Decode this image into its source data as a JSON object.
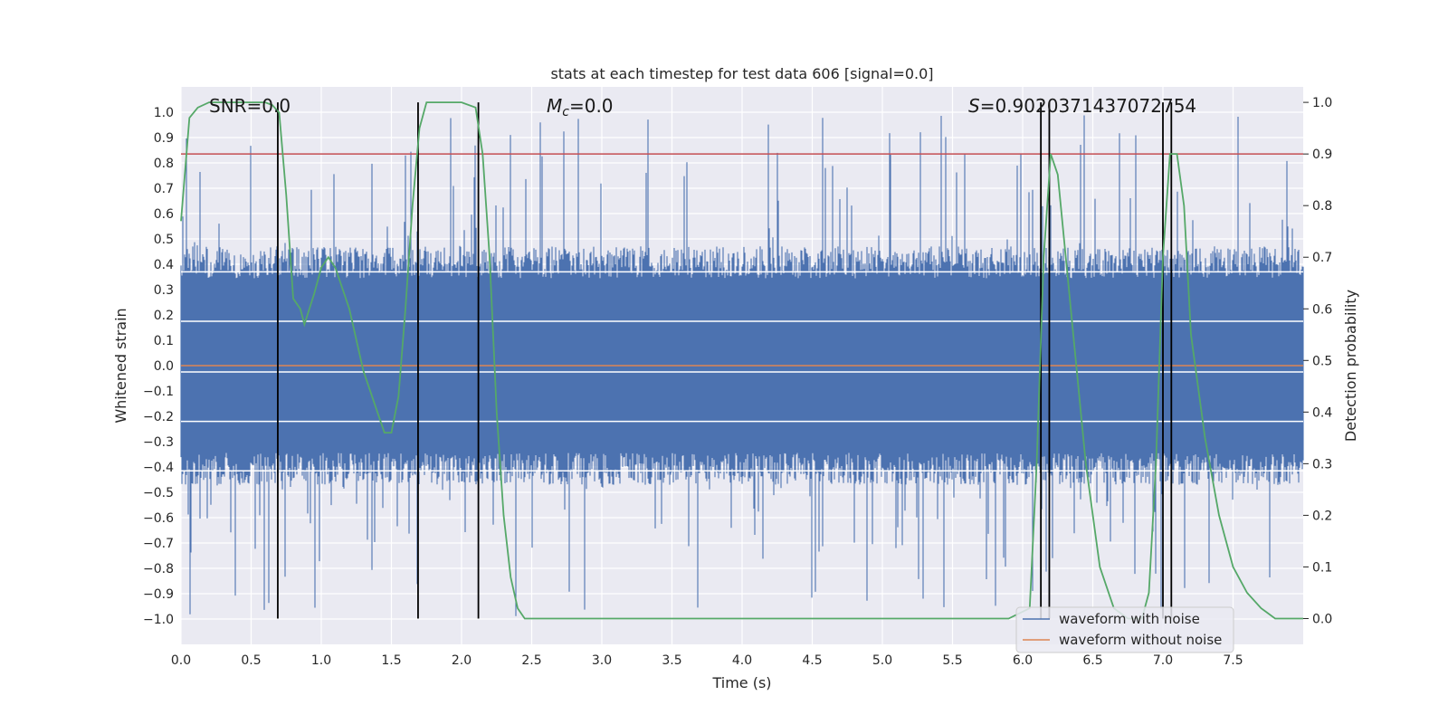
{
  "chart_data": {
    "type": "line",
    "title": "stats at each timestep for test data 606 [signal=0.0]",
    "xlabel": "Time (s)",
    "ylabel": "Whitened strain",
    "y2label": "Detection probability",
    "xlim": [
      0.0,
      8.0
    ],
    "ylim": [
      -1.1,
      1.1
    ],
    "y2lim": [
      -0.05,
      1.03
    ],
    "x_ticks": [
      "0.0",
      "0.5",
      "1.0",
      "1.5",
      "2.0",
      "2.5",
      "3.0",
      "3.5",
      "4.0",
      "4.5",
      "5.0",
      "5.5",
      "6.0",
      "6.5",
      "7.0",
      "7.5"
    ],
    "y_ticks": [
      "1.0",
      "0.9",
      "0.8",
      "0.7",
      "0.6",
      "0.5",
      "0.4",
      "0.3",
      "0.2",
      "0.1",
      "0.0",
      "-0.1",
      "-0.2",
      "-0.3",
      "-0.4",
      "-0.5",
      "-0.6",
      "-0.7",
      "-0.8",
      "-0.9",
      "-1.0"
    ],
    "y2_ticks": [
      "1.0",
      "0.9",
      "0.8",
      "0.7",
      "0.6",
      "0.5",
      "0.4",
      "0.3",
      "0.2",
      "0.1",
      "0.0"
    ],
    "annotations": {
      "snr": "SNR=0.0",
      "mc_symbol": "M",
      "mc_sub": "c",
      "mc_value": "=0.0",
      "s_symbol": "S",
      "s_value": "=0.9020371437072754"
    },
    "legend": {
      "position": "lower-right",
      "entries": [
        "waveform with noise",
        "waveform without noise"
      ]
    },
    "threshold": 0.9,
    "series": [
      {
        "name": "waveform with noise",
        "color": "#4c72b0",
        "description": "noise-only whitened strain, dense band approx ±0.4 with spikes to ±1.0",
        "core_amplitude": 0.42,
        "max_abs": 1.0
      },
      {
        "name": "waveform without noise",
        "color": "#dd8452",
        "constant_value": 0.0
      },
      {
        "name": "detection probability",
        "color": "#55a868",
        "axis": "right",
        "x": [
          0.0,
          0.06,
          0.12,
          0.2,
          0.3,
          0.4,
          0.5,
          0.6,
          0.65,
          0.7,
          0.75,
          0.8,
          0.85,
          0.88,
          0.95,
          1.0,
          1.05,
          1.1,
          1.2,
          1.3,
          1.4,
          1.45,
          1.5,
          1.55,
          1.6,
          1.65,
          1.7,
          1.75,
          1.8,
          1.9,
          2.0,
          2.1,
          2.15,
          2.2,
          2.25,
          2.3,
          2.35,
          2.4,
          2.45,
          2.5,
          3.0,
          4.0,
          5.0,
          5.5,
          5.9,
          6.05,
          6.1,
          6.15,
          6.2,
          6.25,
          6.35,
          6.45,
          6.55,
          6.65,
          6.75,
          6.85,
          6.9,
          6.95,
          7.0,
          7.05,
          7.1,
          7.15,
          7.2,
          7.3,
          7.4,
          7.5,
          7.6,
          7.7,
          7.8,
          7.9,
          8.0
        ],
        "values": [
          0.77,
          0.97,
          0.99,
          1.0,
          1.0,
          1.0,
          1.0,
          1.0,
          0.995,
          0.98,
          0.82,
          0.62,
          0.6,
          0.57,
          0.63,
          0.68,
          0.7,
          0.68,
          0.6,
          0.48,
          0.4,
          0.36,
          0.36,
          0.43,
          0.6,
          0.8,
          0.95,
          1.0,
          1.0,
          1.0,
          1.0,
          0.99,
          0.9,
          0.7,
          0.4,
          0.2,
          0.08,
          0.02,
          0.0,
          0.0,
          0.0,
          0.0,
          0.0,
          0.0,
          0.0,
          0.02,
          0.3,
          0.7,
          0.9,
          0.86,
          0.58,
          0.3,
          0.1,
          0.02,
          0.0,
          0.0,
          0.05,
          0.3,
          0.7,
          0.9,
          0.9,
          0.8,
          0.55,
          0.35,
          0.2,
          0.1,
          0.05,
          0.02,
          0.0,
          0.0,
          0.0
        ]
      }
    ],
    "horizontal_lines": [
      {
        "axis": "right",
        "value": 0.9,
        "color": "#c44e52"
      }
    ],
    "vertical_lines": [
      {
        "x": 0.69,
        "color": "#000000"
      },
      {
        "x": 1.69,
        "color": "#000000"
      },
      {
        "x": 2.12,
        "color": "#000000"
      },
      {
        "x": 6.13,
        "color": "#000000"
      },
      {
        "x": 6.19,
        "color": "#000000"
      },
      {
        "x": 7.0,
        "color": "#000000"
      },
      {
        "x": 7.06,
        "color": "#000000"
      }
    ],
    "white_overlay_lines_left_axis": [
      0.37,
      0.175,
      -0.025,
      -0.22,
      -0.415
    ]
  }
}
